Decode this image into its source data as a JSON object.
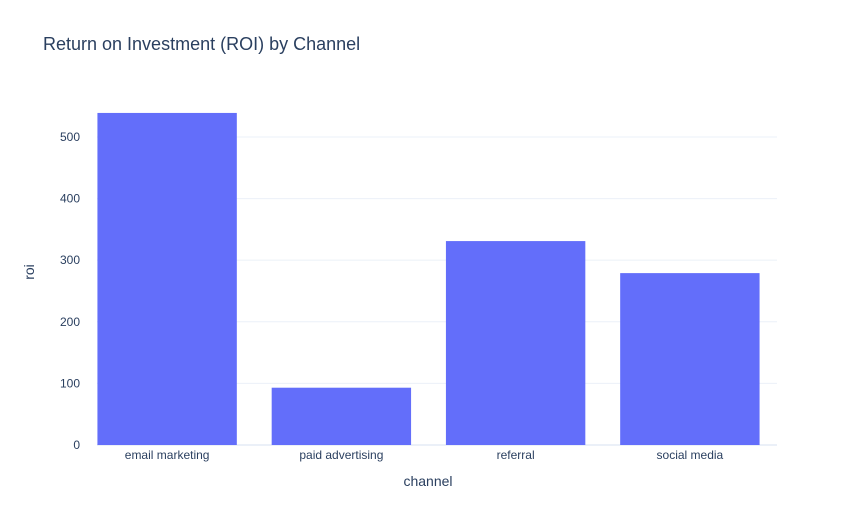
{
  "chart_data": {
    "type": "bar",
    "title": "Return on Investment (ROI) by Channel",
    "xlabel": "channel",
    "ylabel": "roi",
    "categories": [
      "email marketing",
      "paid advertising",
      "referral",
      "social media"
    ],
    "values": [
      539,
      93,
      331,
      279
    ],
    "ylim": [
      0,
      560
    ],
    "yticks": [
      0,
      100,
      200,
      300,
      400,
      500
    ],
    "grid": true,
    "legend": "none",
    "bar_color": "#636efa"
  }
}
